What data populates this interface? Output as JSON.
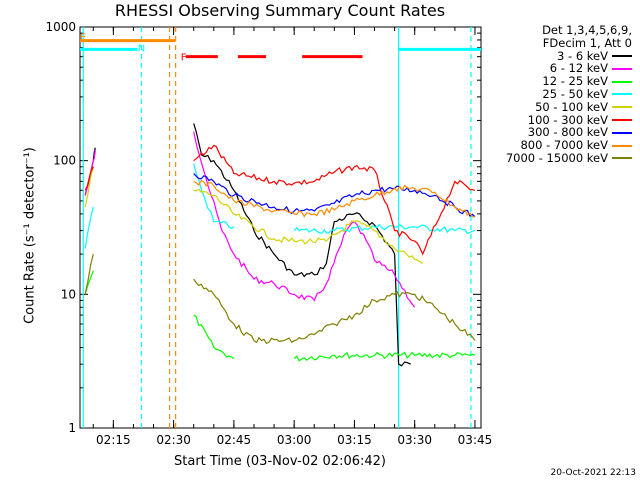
{
  "chart_data": {
    "type": "line",
    "title": "RHESSI Observing Summary Count Rates",
    "xlabel": "Start Time (03-Nov-02 02:06:42)",
    "ylabel": "Count Rate (s⁻¹ detector⁻¹)",
    "y_scale": "log",
    "ylim": [
      1,
      1000
    ],
    "xlim": [
      "02:06:42",
      "03:46:30"
    ],
    "x_ticks": [
      "02:15",
      "02:30",
      "02:45",
      "03:00",
      "03:15",
      "03:30",
      "03:45"
    ],
    "y_ticks": [
      "1",
      "10",
      "100",
      "1000"
    ],
    "legend_header": [
      "Det 1,3,4,5,6,9,",
      "FDecim 1, Att 0"
    ],
    "legend_position": "right",
    "series": [
      {
        "name": "3 - 6 keV",
        "color": "#000000",
        "points": [
          [
            "02:08",
            55
          ],
          [
            "02:10",
            100
          ],
          [
            "02:10:30",
            125
          ],
          [
            "02:35",
            190
          ],
          [
            "02:37",
            110
          ],
          [
            "02:40",
            100
          ],
          [
            "02:45",
            60
          ],
          [
            "02:50",
            30
          ],
          [
            "02:55",
            20
          ],
          [
            "03:00",
            14
          ],
          [
            "03:05",
            14
          ],
          [
            "03:08",
            17
          ],
          [
            "03:10",
            35
          ],
          [
            "03:15",
            40
          ],
          [
            "03:20",
            33
          ],
          [
            "03:25",
            20
          ],
          [
            "03:26",
            3
          ],
          [
            "03:29",
            3
          ]
        ]
      },
      {
        "name": "6 - 12 keV",
        "color": "#ff00ff",
        "points": [
          [
            "02:08",
            55
          ],
          [
            "02:10",
            100
          ],
          [
            "02:10:30",
            120
          ],
          [
            "02:35",
            165
          ],
          [
            "02:38",
            75
          ],
          [
            "02:42",
            30
          ],
          [
            "02:45",
            20
          ],
          [
            "02:50",
            13
          ],
          [
            "02:55",
            12
          ],
          [
            "03:00",
            10
          ],
          [
            "03:05",
            9
          ],
          [
            "03:08",
            12
          ],
          [
            "03:13",
            30
          ],
          [
            "03:15",
            35
          ],
          [
            "03:18",
            25
          ],
          [
            "03:20",
            18
          ],
          [
            "03:25",
            14
          ],
          [
            "03:30",
            8
          ]
        ]
      },
      {
        "name": "12 - 25 keV",
        "color": "#00ff00",
        "points": [
          [
            "02:08",
            10
          ],
          [
            "02:10",
            15
          ],
          [
            "02:35",
            7
          ],
          [
            "02:40",
            4
          ],
          [
            "02:45",
            3.3
          ],
          [
            "03:00",
            3.3
          ],
          [
            "03:10",
            3.5
          ],
          [
            "03:20",
            3.5
          ],
          [
            "03:30",
            3.5
          ],
          [
            "03:40",
            3.5
          ],
          [
            "03:45",
            3.5
          ]
        ]
      },
      {
        "name": "25 - 50 keV",
        "color": "#00ffff",
        "points": [
          [
            "02:08",
            22
          ],
          [
            "02:10",
            45
          ],
          [
            "02:35",
            95
          ],
          [
            "02:37",
            60
          ],
          [
            "02:40",
            35
          ],
          [
            "02:45",
            32
          ],
          [
            "03:00",
            30
          ],
          [
            "03:10",
            30
          ],
          [
            "03:20",
            32
          ],
          [
            "03:30",
            32
          ],
          [
            "03:40",
            30
          ],
          [
            "03:45",
            30
          ]
        ]
      },
      {
        "name": "50 - 100 keV",
        "color": "#d2d200",
        "points": [
          [
            "02:08",
            45
          ],
          [
            "02:10",
            90
          ],
          [
            "02:35",
            60
          ],
          [
            "02:40",
            55
          ],
          [
            "02:45",
            40
          ],
          [
            "02:55",
            26
          ],
          [
            "03:00",
            25
          ],
          [
            "03:08",
            25
          ],
          [
            "03:15",
            35
          ],
          [
            "03:20",
            30
          ],
          [
            "03:25",
            22
          ],
          [
            "03:28",
            20
          ],
          [
            "03:32",
            17
          ]
        ]
      },
      {
        "name": "100 - 300 keV",
        "color": "#ff0000",
        "points": [
          [
            "02:08",
            60
          ],
          [
            "02:10",
            90
          ],
          [
            "02:35",
            100
          ],
          [
            "02:40",
            130
          ],
          [
            "02:45",
            80
          ],
          [
            "02:55",
            70
          ],
          [
            "03:00",
            68
          ],
          [
            "03:05",
            70
          ],
          [
            "03:10",
            82
          ],
          [
            "03:15",
            90
          ],
          [
            "03:20",
            85
          ],
          [
            "03:25",
            30
          ],
          [
            "03:30",
            25
          ],
          [
            "03:32",
            20
          ],
          [
            "03:40",
            70
          ],
          [
            "03:45",
            60
          ]
        ]
      },
      {
        "name": "300 - 800 keV",
        "color": "#0000ff",
        "points": [
          [
            "02:35",
            80
          ],
          [
            "02:40",
            70
          ],
          [
            "02:45",
            55
          ],
          [
            "02:55",
            45
          ],
          [
            "03:00",
            42
          ],
          [
            "03:05",
            42
          ],
          [
            "03:10",
            48
          ],
          [
            "03:15",
            55
          ],
          [
            "03:20",
            60
          ],
          [
            "03:25",
            62
          ],
          [
            "03:30",
            60
          ],
          [
            "03:35",
            55
          ],
          [
            "03:40",
            45
          ],
          [
            "03:45",
            38
          ]
        ]
      },
      {
        "name": "800 - 7000 keV",
        "color": "#ff8c00",
        "points": [
          [
            "02:35",
            70
          ],
          [
            "02:40",
            65
          ],
          [
            "02:45",
            50
          ],
          [
            "02:55",
            42
          ],
          [
            "03:00",
            40
          ],
          [
            "03:05",
            40
          ],
          [
            "03:10",
            43
          ],
          [
            "03:15",
            50
          ],
          [
            "03:20",
            55
          ],
          [
            "03:25",
            62
          ],
          [
            "03:30",
            62
          ],
          [
            "03:35",
            58
          ],
          [
            "03:40",
            45
          ],
          [
            "03:45",
            38
          ]
        ]
      },
      {
        "name": "7000 - 15000 keV",
        "color": "#808000",
        "points": [
          [
            "02:08",
            10
          ],
          [
            "02:10",
            20
          ],
          [
            "02:35",
            13
          ],
          [
            "02:40",
            10
          ],
          [
            "02:45",
            6
          ],
          [
            "02:50",
            4.5
          ],
          [
            "03:00",
            4.5
          ],
          [
            "03:05",
            5
          ],
          [
            "03:10",
            6
          ],
          [
            "03:15",
            7
          ],
          [
            "03:20",
            9
          ],
          [
            "03:25",
            10
          ],
          [
            "03:30",
            10
          ],
          [
            "03:35",
            8
          ],
          [
            "03:40",
            6
          ],
          [
            "03:45",
            4.5
          ]
        ]
      }
    ],
    "annotations": [
      {
        "text": "F",
        "x": "02:32:30",
        "y": 600,
        "color": "#ff0000"
      },
      {
        "text": "N",
        "x": "02:22",
        "y": 700,
        "color": "#00ffff"
      },
      {
        "text": "E",
        "x": "02:07:30",
        "y": 850,
        "color": "#ff8c00"
      }
    ],
    "state_bars": [
      {
        "color": "#ff8c00",
        "level": 790,
        "from": "02:06:42",
        "to": "02:30:30"
      },
      {
        "color": "#00ffff",
        "level": 680,
        "from": "02:06:42",
        "to": "02:21:00"
      },
      {
        "color": "#00ffff",
        "level": 680,
        "from": "03:26:00",
        "to": "03:46:30"
      },
      {
        "color": "#ff0000",
        "level": 600,
        "from": "02:33:00",
        "to": "02:41:00",
        "dashed": true
      },
      {
        "color": "#ff0000",
        "level": 600,
        "from": "02:46:00",
        "to": "02:53:00",
        "dashed": true
      },
      {
        "color": "#ff0000",
        "level": 600,
        "from": "03:02:00",
        "to": "03:17:00",
        "dashed": true
      }
    ],
    "vertical_markers": [
      {
        "x": "02:07:30",
        "color": "#00ffff",
        "style": "solid"
      },
      {
        "x": "02:22:00",
        "color": "#00ffff",
        "style": "dashed"
      },
      {
        "x": "02:29:00",
        "color": "#ff8c00",
        "style": "dashed"
      },
      {
        "x": "02:30:30",
        "color": "#ff8c00",
        "style": "dashed"
      },
      {
        "x": "03:26:00",
        "color": "#00ffff",
        "style": "solid"
      },
      {
        "x": "03:44:00",
        "color": "#00ffff",
        "style": "dashed"
      }
    ]
  },
  "footer_timestamp": "20-Oct-2021 22:13"
}
